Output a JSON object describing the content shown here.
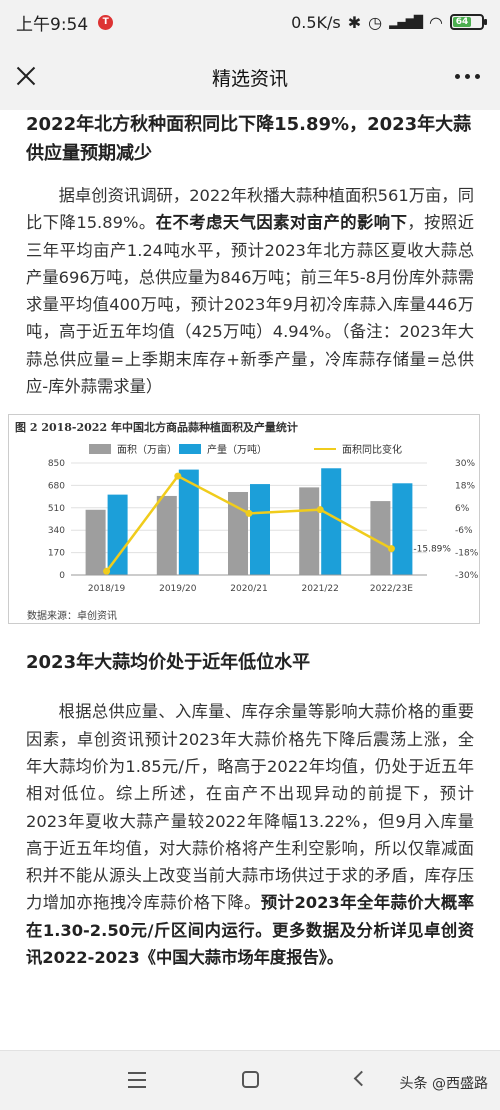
{
  "status": {
    "time": "上午9:54",
    "notification_badge": "T",
    "speed": "0.5K/s",
    "battery": "64"
  },
  "nav": {
    "title": "精选资讯"
  },
  "article": {
    "heading1": "2022年北方秋种面积同比下降15.89%，2023年大蒜供应量预期减少",
    "para1_a": "据卓创资讯调研，2022年秋播大蒜种植面积561万亩，同比下降15.89%。",
    "para1_b": "在不考虑天气因素对亩产的影响下",
    "para1_c": "，按照近三年平均亩产1.24吨水平，预计2023年北方蒜区夏收大蒜总产量696万吨，总供应量为846万吨；前三年5-8月份库外蒜需求量平均值400万吨，预计2023年9月初冷库蒜入库量446万吨，高于近五年均值（425万吨）4.94%。（备注：2023年大蒜总供应量=上季期末库存+新季产量，冷库蒜存储量=总供应-库外蒜需求量）",
    "figure_title": "图 2 2018-2022 年中国北方商品蒜种植面积及产量统计",
    "figure_source": "数据来源：卓创资讯",
    "heading2": "2023年大蒜均价处于近年低位水平",
    "para2_a": "根据总供应量、入库量、库存余量等影响大蒜价格的重要因素，卓创资讯预计2023年大蒜价格先下降后震荡上涨，全年大蒜均价为1.85元/斤，略高于2022年均值，仍处于近五年相对低位。综上所述，在亩产不出现异动的前提下，预计2023年夏收大蒜产量较2022年降幅13.22%，但9月入库量高于近五年均值，对大蒜价格将产生利空影响，所以仅靠减面积并不能从源头上改变当前大蒜市场供过于求的矛盾，库存压力增加亦拖拽冷库蒜价格下降。",
    "para2_b": "预计2023年全年蒜价大概率在1.30-2.50元/斤区间内运行。更多数据及分析详见卓创资讯2022-2023《中国大蒜市场年度报告》。"
  },
  "bottom": {
    "watermark": "头条 @西盛路"
  },
  "colors": {
    "area_bar": "#9e9e9e",
    "production_bar": "#1c9fd9",
    "change_line": "#f0cc1c"
  },
  "chart_data": {
    "type": "bar",
    "categories": [
      "2018/19",
      "2019/20",
      "2020/21",
      "2021/22",
      "2022/23E"
    ],
    "series": [
      {
        "name": "面积（万亩）",
        "type": "bar",
        "axis": "left",
        "values": [
          495,
          600,
          630,
          665,
          561
        ]
      },
      {
        "name": "产量（万吨）",
        "type": "bar",
        "axis": "left",
        "values": [
          610,
          800,
          690,
          810,
          696
        ]
      },
      {
        "name": "面积同比变化",
        "type": "line",
        "axis": "right",
        "values": [
          -28,
          23,
          3,
          5,
          -15.89
        ]
      }
    ],
    "left_axis": {
      "ticks": [
        "0",
        "170",
        "340",
        "510",
        "680",
        "850"
      ],
      "ylim": [
        0,
        850
      ]
    },
    "right_axis": {
      "ticks": [
        "-30%",
        "-18%",
        "-6%",
        "6%",
        "18%",
        "30%"
      ],
      "ylim": [
        -30,
        30
      ]
    },
    "annotation": "-15.89%",
    "legend_position": "top"
  }
}
